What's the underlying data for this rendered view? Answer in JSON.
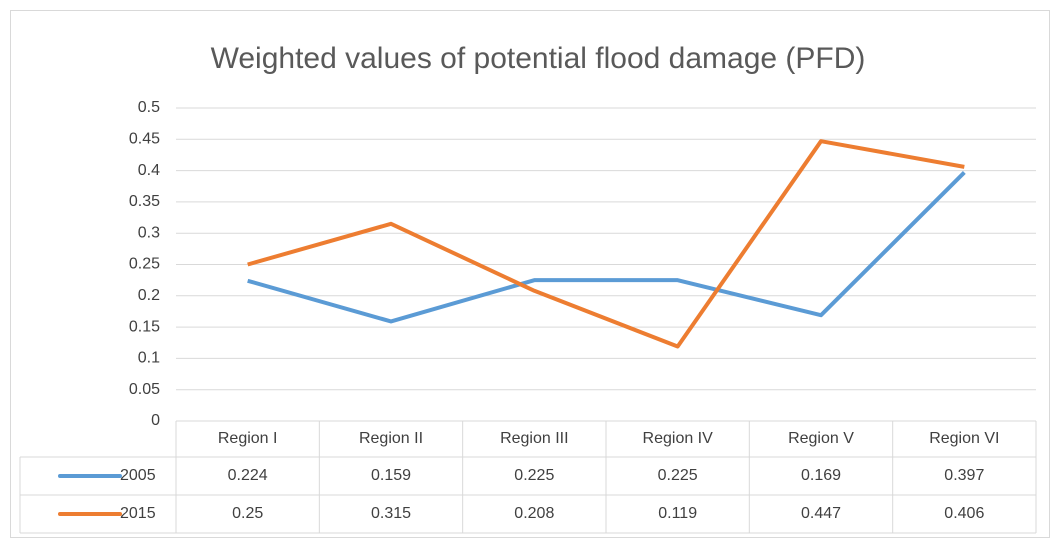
{
  "chart_data": {
    "type": "line",
    "title": "Weighted values of potential flood damage (PFD)",
    "categories": [
      "Region I",
      "Region II",
      "Region III",
      "Region IV",
      "Region V",
      "Region VI"
    ],
    "series": [
      {
        "name": "2005",
        "color": "#5b9bd5",
        "values": [
          0.224,
          0.159,
          0.225,
          0.225,
          0.169,
          0.397
        ]
      },
      {
        "name": "2015",
        "color": "#ed7d31",
        "values": [
          0.25,
          0.315,
          0.208,
          0.119,
          0.447,
          0.406
        ]
      }
    ],
    "ylim": [
      0,
      0.5
    ],
    "yticks": [
      0,
      0.05,
      0.1,
      0.15,
      0.2,
      0.25,
      0.3,
      0.35,
      0.4,
      0.45,
      0.5
    ],
    "grid": true,
    "data_table": true
  }
}
